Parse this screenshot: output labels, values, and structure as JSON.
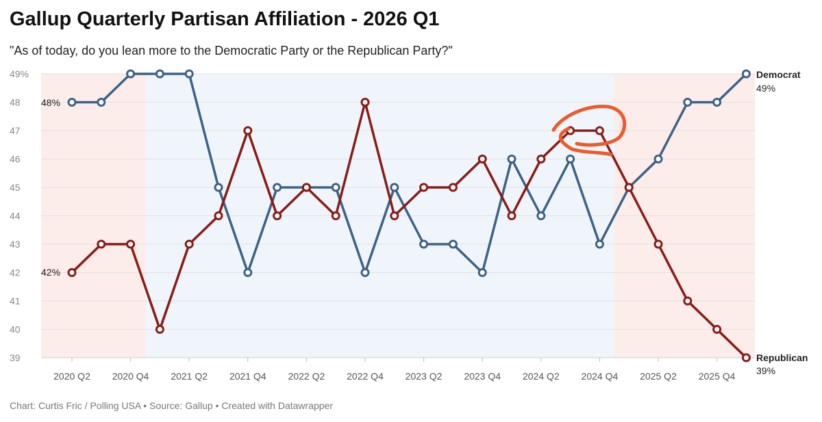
{
  "title": "Gallup Quarterly Partisan Affiliation - 2026 Q1",
  "subtitle": "\"As of today, do you lean more to the Democratic Party or the Republican Party?\"",
  "footer": "Chart: Curtis Fric / Polling USA • Source: Gallup • Created with Datawrapper",
  "colors": {
    "democrat": "#3c6287",
    "republican": "#8b1a16",
    "band_red": "#fcecea",
    "band_blue": "#eff5fb",
    "annotation": "#ee5a28"
  },
  "chart_data": {
    "type": "line",
    "title": "Gallup Quarterly Partisan Affiliation - 2026 Q1",
    "x": [
      "2020 Q2",
      "2020 Q3",
      "2020 Q4",
      "2021 Q1",
      "2021 Q2",
      "2021 Q3",
      "2021 Q4",
      "2022 Q1",
      "2022 Q2",
      "2022 Q3",
      "2022 Q4",
      "2023 Q1",
      "2023 Q2",
      "2023 Q3",
      "2023 Q4",
      "2024 Q1",
      "2024 Q2",
      "2024 Q3",
      "2024 Q4",
      "2025 Q1",
      "2025 Q2",
      "2025 Q3",
      "2025 Q4",
      "2026 Q1"
    ],
    "x_tick_labels": [
      "2020 Q2",
      "2020 Q4",
      "2021 Q2",
      "2021 Q4",
      "2022 Q2",
      "2022 Q4",
      "2023 Q2",
      "2023 Q4",
      "2024 Q2",
      "2024 Q4",
      "2025 Q2",
      "2025 Q4"
    ],
    "y_ticks": [
      "49%",
      "48",
      "47",
      "46",
      "45",
      "44",
      "43",
      "42",
      "41",
      "40",
      "39"
    ],
    "y_tick_values": [
      49,
      48,
      47,
      46,
      45,
      44,
      43,
      42,
      41,
      40,
      39
    ],
    "ylim": [
      39,
      49
    ],
    "series": [
      {
        "name": "Democrat",
        "color": "#3c6287",
        "values": [
          48,
          48,
          49,
          49,
          49,
          45,
          42,
          45,
          45,
          45,
          42,
          45,
          43,
          43,
          42,
          46,
          44,
          46,
          43,
          45,
          46,
          48,
          48,
          49
        ]
      },
      {
        "name": "Republican",
        "color": "#8b1a16",
        "values": [
          42,
          43,
          43,
          40,
          43,
          44,
          47,
          44,
          45,
          44,
          48,
          44,
          45,
          45,
          46,
          44,
          46,
          47,
          47,
          45,
          43,
          41,
          40,
          39
        ]
      }
    ],
    "bands": [
      {
        "party": "Republican",
        "from_index": 0,
        "to_index": 3
      },
      {
        "party": "Democrat",
        "from_index": 3,
        "to_index": 19
      },
      {
        "party": "Republican",
        "from_index": 19,
        "to_index": 23
      }
    ],
    "start_labels": {
      "democrat": "48%",
      "republican": "42%"
    },
    "end_labels": {
      "democrat_name": "Democrat",
      "democrat_value": "49%",
      "republican_name": "Republican",
      "republican_value": "39%"
    }
  }
}
